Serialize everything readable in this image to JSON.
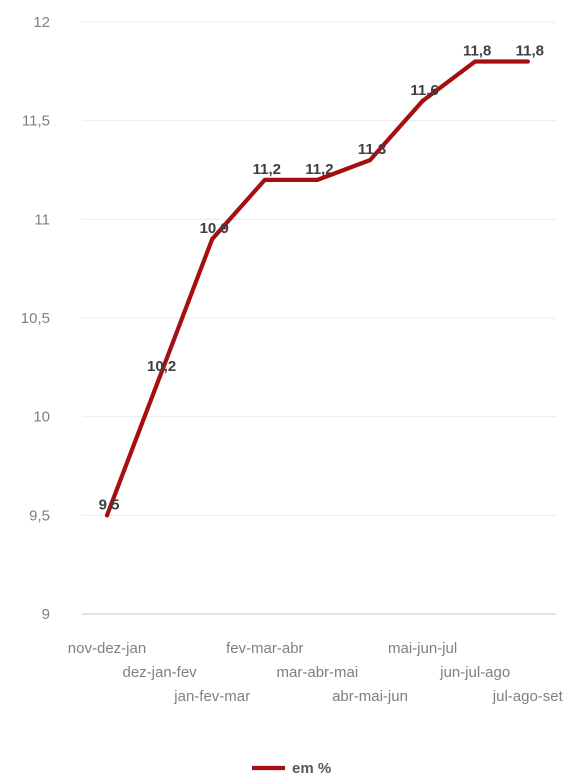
{
  "chart_data": {
    "type": "line",
    "categories": [
      "nov-dez-jan",
      "dez-jan-fev",
      "jan-fev-mar",
      "fev-mar-abr",
      "mar-abr-mai",
      "abr-mai-jun",
      "mai-jun-jul",
      "jun-jul-ago",
      "jul-ago-set"
    ],
    "series": [
      {
        "name": "em %",
        "values": [
          9.5,
          10.2,
          10.9,
          11.2,
          11.2,
          11.3,
          11.6,
          11.8,
          11.8
        ],
        "labels": [
          "9,5",
          "10,2",
          "10,9",
          "11,2",
          "11,2",
          "11,3",
          "11,6",
          "11,8",
          "11,8"
        ],
        "color": "#a50f0f"
      }
    ],
    "ylim": [
      9,
      12
    ],
    "yticks": [
      9,
      9.5,
      10,
      10.5,
      11,
      11.5,
      12
    ],
    "ytick_labels": [
      "9",
      "9,5",
      "10",
      "10,5",
      "11",
      "11,5",
      "12"
    ],
    "grid": true,
    "legend_position": "bottom",
    "title": "",
    "xlabel": "",
    "ylabel": ""
  }
}
